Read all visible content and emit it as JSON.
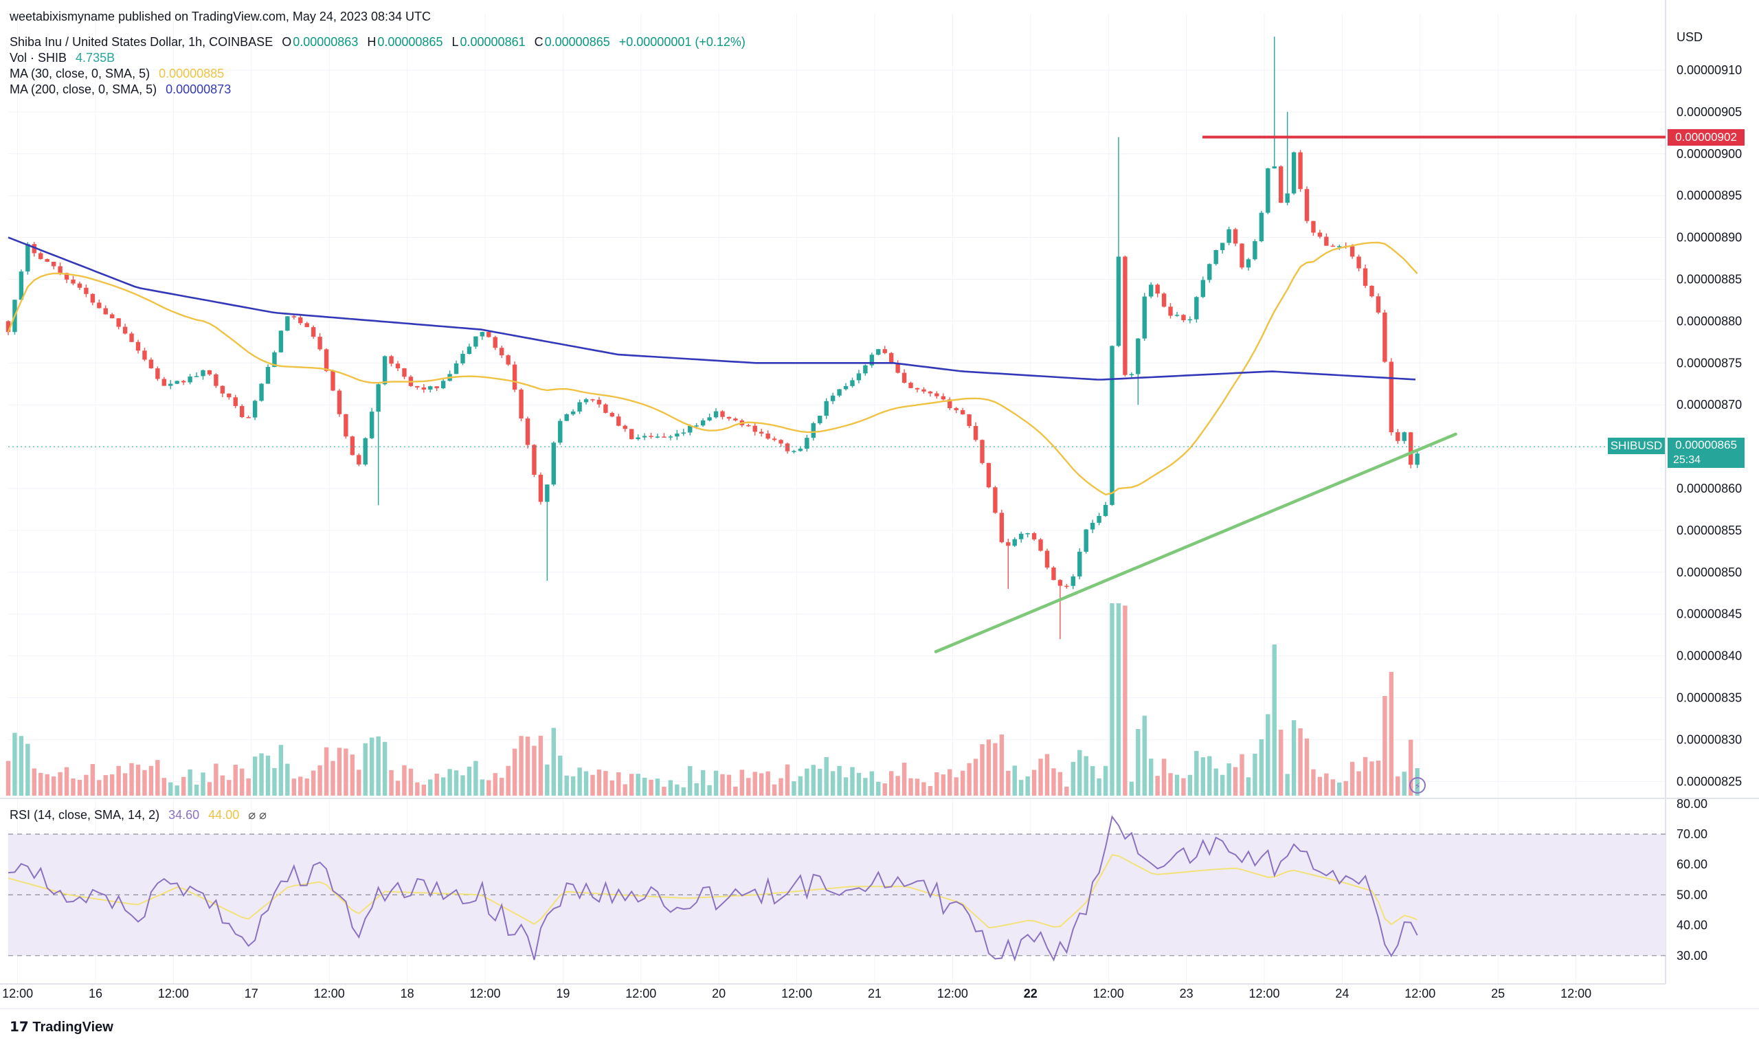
{
  "publish_line": "weetabixismyname published on TradingView.com, May 24, 2023 08:34 UTC",
  "symbol_line": {
    "name": "Shiba Inu / United States Dollar, 1h, COINBASE",
    "o_label": "O",
    "o": "0.00000863",
    "h_label": "H",
    "h": "0.00000865",
    "l_label": "L",
    "l": "0.00000861",
    "c_label": "C",
    "c": "0.00000865",
    "change": "+0.00000001 (+0.12%)"
  },
  "indicators": {
    "vol_label": "Vol · SHIB",
    "vol_value": "4.735B",
    "ma30_label": "MA (30, close, 0, SMA, 5)",
    "ma30_value": "0.00000885",
    "ma200_label": "MA (200, close, 0, SMA, 5)",
    "ma200_value": "0.00000873",
    "rsi_label": "RSI (14, close, SMA, 14, 2)",
    "rsi_value": "34.60",
    "rsi_ma_value": "44.00",
    "rsi_icons": "⌀ ⌀"
  },
  "axis": {
    "currency": "USD",
    "price_ticks": [
      "0.00000910",
      "0.00000905",
      "0.00000900",
      "0.00000895",
      "0.00000890",
      "0.00000885",
      "0.00000880",
      "0.00000875",
      "0.00000870",
      "0.00000865",
      "0.00000860",
      "0.00000855",
      "0.00000850",
      "0.00000845",
      "0.00000840",
      "0.00000835",
      "0.00000830",
      "0.00000825"
    ],
    "rsi_ticks": [
      "80.00",
      "70.00",
      "60.00",
      "50.00",
      "40.00",
      "30.00"
    ],
    "time_ticks": [
      "12:00",
      "16",
      "12:00",
      "17",
      "12:00",
      "18",
      "12:00",
      "19",
      "12:00",
      "20",
      "12:00",
      "21",
      "12:00",
      "22",
      "12:00",
      "23",
      "12:00",
      "24",
      "12:00",
      "25",
      "12:00"
    ]
  },
  "badges": {
    "resistance": "0.00000902",
    "symbol": "SHIBUSD",
    "last_price": "0.00000865",
    "countdown": "25:34"
  },
  "footer": {
    "brand": "TradingView"
  },
  "colors": {
    "up": "#26a69a",
    "down": "#ef5350",
    "vol_up": "#8fd2c7",
    "vol_down": "#f3a3a3",
    "ma30": "#f0c243",
    "ma200": "#3238b8",
    "resistance": "#e03343",
    "trendline": "#7ec87a",
    "rsi": "#8a72c0",
    "rsi_ma": "#f2e27a",
    "rsi_band": "#efeaf8"
  },
  "chart_data": {
    "type": "candlestick",
    "timeframe": "1h",
    "x_start": "2023-05-15 08:00",
    "x_end": "2023-05-24 08:00",
    "ylim": [
      8.23e-06,
      9.15e-06
    ],
    "rsi_ylim": [
      20,
      80
    ],
    "resistance_level": 9.02e-06,
    "trendline": [
      {
        "t": "2023-05-21 11:00",
        "price": 8.405e-06
      },
      {
        "t": "2023-05-24 16:00",
        "price": 8.665e-06
      }
    ],
    "last_close": 8.65e-06,
    "ma30_last": 8.85e-06,
    "ma200_last": 8.73e-06,
    "rsi_last": 34.6,
    "rsi_ma_last": 44.0,
    "candles": []
  }
}
